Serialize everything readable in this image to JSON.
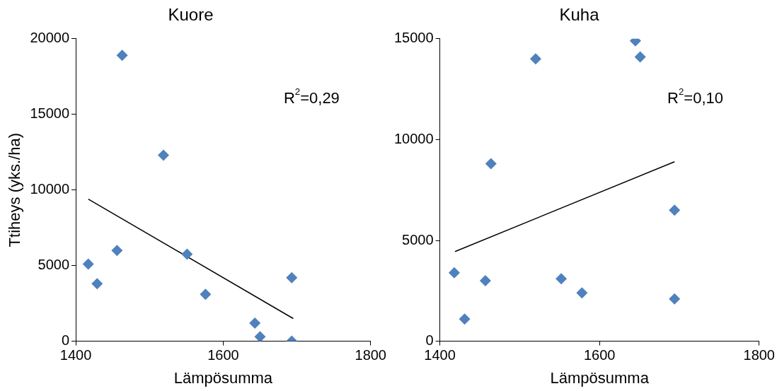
{
  "chart_data": [
    {
      "type": "scatter",
      "title": "Kuore",
      "xlabel": "Lämpösumma",
      "ylabel": "Ttiheys (yks./ha)",
      "xlim": [
        1400,
        1800
      ],
      "xticks": [
        1400,
        1600,
        1800
      ],
      "ylim": [
        0,
        20000
      ],
      "yticks": [
        0,
        5000,
        10000,
        15000,
        20000
      ],
      "grid": false,
      "legend": false,
      "annotations": [
        "R$^{2}$=0,29"
      ],
      "series": [
        {
          "type": "scatter",
          "color": "#4f81bd",
          "marker": "diamond",
          "x": [
            1417,
            1429,
            1456,
            1463,
            1519,
            1551,
            1576,
            1643,
            1650,
            1693,
            1693
          ],
          "values": [
            5100,
            3800,
            6000,
            18900,
            12300,
            5750,
            3100,
            1200,
            300,
            4200,
            0
          ]
        },
        {
          "type": "line",
          "color": "#000000",
          "line_style": "solid",
          "x": [
            1417,
            1695
          ],
          "values": [
            9400,
            1500
          ]
        }
      ]
    },
    {
      "type": "scatter",
      "title": "Kuha",
      "xlabel": "Lämpösumma",
      "xlim": [
        1400,
        1800
      ],
      "xticks": [
        1400,
        1600,
        1800
      ],
      "ylim": [
        0,
        15000
      ],
      "yticks": [
        0,
        5000,
        10000,
        15000
      ],
      "grid": false,
      "legend": false,
      "annotations": [
        "R$^{2}$=0,10"
      ],
      "series": [
        {
          "type": "scatter",
          "color": "#4f81bd",
          "marker": "diamond",
          "x": [
            1418,
            1431,
            1457,
            1464,
            1520,
            1552,
            1578,
            1645,
            1651,
            1694,
            1694
          ],
          "values": [
            3400,
            1100,
            3000,
            8800,
            14000,
            3100,
            2400,
            14900,
            14100,
            6500,
            2100
          ]
        },
        {
          "type": "line",
          "color": "#000000",
          "line_style": "solid",
          "x": [
            1419,
            1694
          ],
          "values": [
            4450,
            8900
          ]
        }
      ]
    }
  ]
}
